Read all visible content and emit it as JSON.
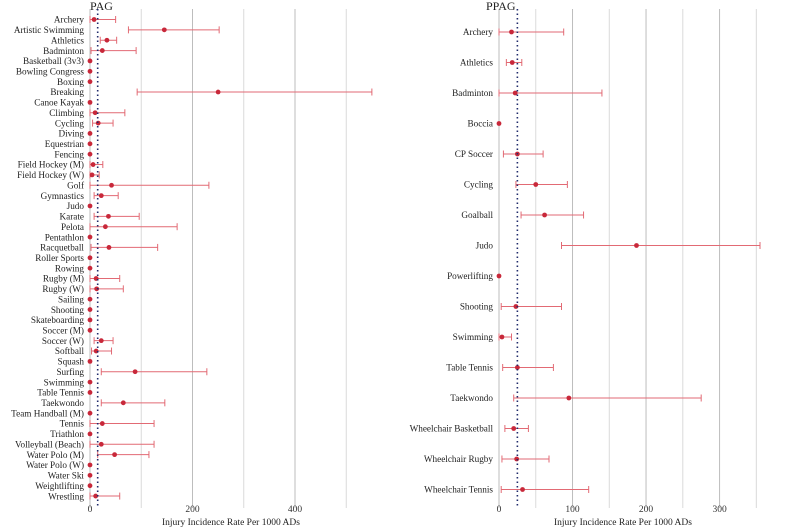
{
  "chart_data": [
    {
      "type": "forest",
      "title": "PAG",
      "xlabel": "Injury Incidence Rate Per 1000 ADs",
      "xlim": [
        0,
        560
      ],
      "xticks": [
        0,
        200,
        400
      ],
      "reference_line": 15,
      "grid": true,
      "rows": [
        {
          "label": "Archery",
          "est": 8,
          "lo": 0,
          "hi": 50
        },
        {
          "label": "Artistic Swimming",
          "est": 145,
          "lo": 75,
          "hi": 252
        },
        {
          "label": "Athletics",
          "est": 33,
          "lo": 20,
          "hi": 52
        },
        {
          "label": "Badminton",
          "est": 24,
          "lo": 2,
          "hi": 90
        },
        {
          "label": "Basketball (3v3)",
          "est": 0,
          "lo": 0,
          "hi": 0
        },
        {
          "label": "Bowling Congress",
          "est": 0,
          "lo": 0,
          "hi": 0
        },
        {
          "label": "Boxing",
          "est": 0,
          "lo": 0,
          "hi": 0
        },
        {
          "label": "Breaking",
          "est": 250,
          "lo": 92,
          "hi": 550
        },
        {
          "label": "Canoe Kayak",
          "est": 0,
          "lo": 0,
          "hi": 0
        },
        {
          "label": "Climbing",
          "est": 10,
          "lo": 0,
          "hi": 68
        },
        {
          "label": "Cycling",
          "est": 16,
          "lo": 5,
          "hi": 45
        },
        {
          "label": "Diving",
          "est": 0,
          "lo": 0,
          "hi": 0
        },
        {
          "label": "Equestrian",
          "est": 0,
          "lo": 0,
          "hi": 0
        },
        {
          "label": "Fencing",
          "est": 0,
          "lo": 0,
          "hi": 0
        },
        {
          "label": "Field Hockey (M)",
          "est": 6,
          "lo": 0,
          "hi": 25
        },
        {
          "label": "Field Hockey (W)",
          "est": 4,
          "lo": 0,
          "hi": 18
        },
        {
          "label": "Golf",
          "est": 42,
          "lo": 0,
          "hi": 232
        },
        {
          "label": "Gymnastics",
          "est": 22,
          "lo": 8,
          "hi": 55
        },
        {
          "label": "Judo",
          "est": 0,
          "lo": 0,
          "hi": 0
        },
        {
          "label": "Karate",
          "est": 36,
          "lo": 8,
          "hi": 96
        },
        {
          "label": "Pelota",
          "est": 30,
          "lo": 0,
          "hi": 170
        },
        {
          "label": "Pentathlon",
          "est": 0,
          "lo": 0,
          "hi": 0
        },
        {
          "label": "Racquetball",
          "est": 37,
          "lo": 2,
          "hi": 132
        },
        {
          "label": "Roller Sports",
          "est": 0,
          "lo": 0,
          "hi": 0
        },
        {
          "label": "Rowing",
          "est": 0,
          "lo": 0,
          "hi": 0
        },
        {
          "label": "Rugby (M)",
          "est": 12,
          "lo": 0,
          "hi": 58
        },
        {
          "label": "Rugby (W)",
          "est": 13,
          "lo": 0,
          "hi": 65
        },
        {
          "label": "Sailing",
          "est": 0,
          "lo": 0,
          "hi": 0
        },
        {
          "label": "Shooting",
          "est": 0,
          "lo": 0,
          "hi": 0
        },
        {
          "label": "Skateboarding",
          "est": 0,
          "lo": 0,
          "hi": 0
        },
        {
          "label": "Soccer (M)",
          "est": 0,
          "lo": 0,
          "hi": 0
        },
        {
          "label": "Soccer (W)",
          "est": 22,
          "lo": 8,
          "hi": 45
        },
        {
          "label": "Softball",
          "est": 12,
          "lo": 3,
          "hi": 42
        },
        {
          "label": "Squash",
          "est": 0,
          "lo": 0,
          "hi": 0
        },
        {
          "label": "Surfing",
          "est": 88,
          "lo": 22,
          "hi": 228
        },
        {
          "label": "Swimming",
          "est": 0,
          "lo": 0,
          "hi": 0
        },
        {
          "label": "Table Tennis",
          "est": 0,
          "lo": 0,
          "hi": 0
        },
        {
          "label": "Taekwondo",
          "est": 65,
          "lo": 22,
          "hi": 146
        },
        {
          "label": "Team Handball (M)",
          "est": 0,
          "lo": 0,
          "hi": 0
        },
        {
          "label": "Tennis",
          "est": 24,
          "lo": 0,
          "hi": 125
        },
        {
          "label": "Triathlon",
          "est": 0,
          "lo": 0,
          "hi": 0
        },
        {
          "label": "Volleyball (Beach)",
          "est": 22,
          "lo": 0,
          "hi": 125
        },
        {
          "label": "Water Polo (M)",
          "est": 48,
          "lo": 15,
          "hi": 115
        },
        {
          "label": "Water Polo (W)",
          "est": 0,
          "lo": 0,
          "hi": 0
        },
        {
          "label": "Water Ski",
          "est": 0,
          "lo": 0,
          "hi": 0
        },
        {
          "label": "Weightlifting",
          "est": 0,
          "lo": 0,
          "hi": 0
        },
        {
          "label": "Wrestling",
          "est": 11,
          "lo": 0,
          "hi": 58
        }
      ]
    },
    {
      "type": "forest",
      "title": "PPAG",
      "xlabel": "Injury Incidence Rate Per 1000 ADs",
      "xlim": [
        0,
        355
      ],
      "xticks": [
        0,
        100,
        200,
        300
      ],
      "reference_line": 25,
      "grid": true,
      "rows": [
        {
          "label": "Archery",
          "est": 17,
          "lo": 0,
          "hi": 88
        },
        {
          "label": "Athletics",
          "est": 18,
          "lo": 10,
          "hi": 31
        },
        {
          "label": "Badminton",
          "est": 22,
          "lo": 0,
          "hi": 140
        },
        {
          "label": "Boccia",
          "est": 0,
          "lo": 0,
          "hi": 0
        },
        {
          "label": "CP Soccer",
          "est": 25,
          "lo": 6,
          "hi": 60
        },
        {
          "label": "Cycling",
          "est": 50,
          "lo": 23,
          "hi": 93
        },
        {
          "label": "Goalball",
          "est": 62,
          "lo": 30,
          "hi": 115
        },
        {
          "label": "Judo",
          "est": 187,
          "lo": 85,
          "hi": 355
        },
        {
          "label": "Powerlifting",
          "est": 0,
          "lo": 0,
          "hi": 0
        },
        {
          "label": "Shooting",
          "est": 23,
          "lo": 3,
          "hi": 85
        },
        {
          "label": "Swimming",
          "est": 4,
          "lo": 0,
          "hi": 17
        },
        {
          "label": "Table Tennis",
          "est": 25,
          "lo": 5,
          "hi": 74
        },
        {
          "label": "Taekwondo",
          "est": 95,
          "lo": 20,
          "hi": 275
        },
        {
          "label": "Wheelchair Basketball",
          "est": 20,
          "lo": 8,
          "hi": 40
        },
        {
          "label": "Wheelchair Rugby",
          "est": 24,
          "lo": 4,
          "hi": 68
        },
        {
          "label": "Wheelchair Tennis",
          "est": 32,
          "lo": 3,
          "hi": 122
        }
      ]
    }
  ]
}
